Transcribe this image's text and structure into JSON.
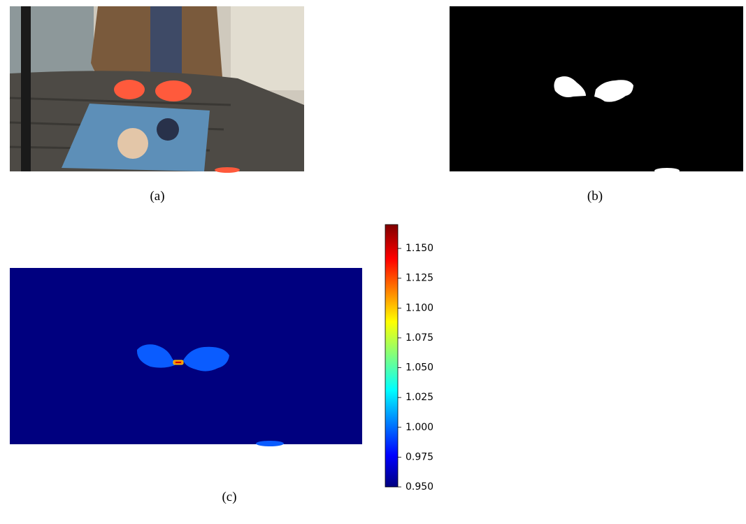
{
  "figure": {
    "panels": [
      {
        "caption": "(a)"
      },
      {
        "caption": "(b)"
      },
      {
        "caption": "(c)"
      }
    ],
    "colorbar": {
      "colormap": "jet",
      "lim": [
        0.95,
        1.17
      ],
      "ticks": [
        {
          "value": 0.95,
          "label": "0.950"
        },
        {
          "value": 0.975,
          "label": "0.975"
        },
        {
          "value": 1.0,
          "label": "1.000"
        },
        {
          "value": 1.025,
          "label": "1.025"
        },
        {
          "value": 1.05,
          "label": "1.050"
        },
        {
          "value": 1.075,
          "label": "1.075"
        },
        {
          "value": 1.1,
          "label": "1.100"
        },
        {
          "value": 1.125,
          "label": "1.125"
        },
        {
          "value": 1.15,
          "label": "1.150"
        }
      ]
    }
  }
}
